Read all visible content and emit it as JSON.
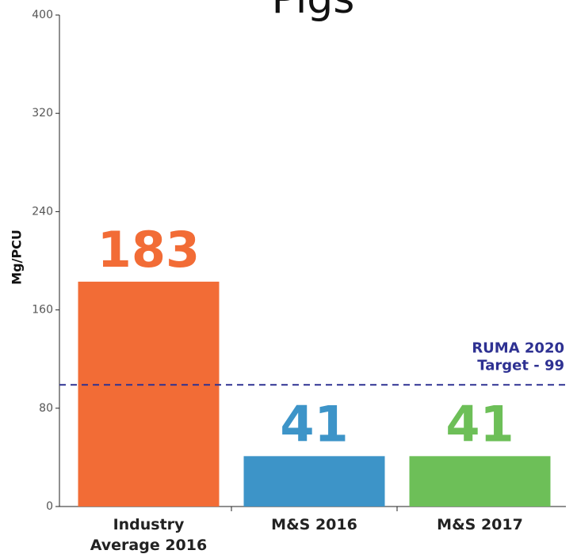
{
  "chart_data": {
    "type": "bar",
    "title": "Pigs",
    "y_label": "Mg/PCU",
    "categories": [
      "Industry Average 2016",
      "M&S 2016",
      "M&S 2017"
    ],
    "values": [
      183,
      41,
      41
    ],
    "colors": [
      "#f26c36",
      "#3d94c8",
      "#6dbf58"
    ],
    "ylim": [
      0,
      400
    ],
    "yticks": [
      0,
      80,
      160,
      240,
      320,
      400
    ],
    "target": {
      "value": 99,
      "lines": [
        "RUMA 2020",
        "Target - 99"
      ],
      "color": "#2e3192"
    }
  }
}
